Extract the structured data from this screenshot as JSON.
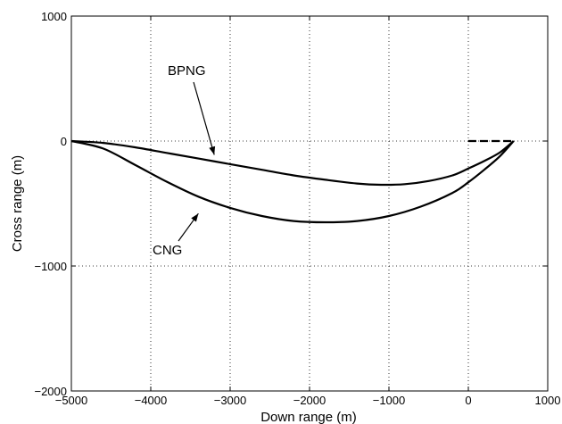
{
  "chart_data": {
    "type": "line",
    "title": "",
    "xlabel": "Down range (m)",
    "ylabel": "Cross range (m)",
    "xlim": [
      -5000,
      1000
    ],
    "ylim": [
      -2000,
      1000
    ],
    "xticks": [
      -5000,
      -4000,
      -3000,
      -2000,
      -1000,
      0,
      1000
    ],
    "yticks": [
      1000,
      0,
      -1000,
      -2000
    ],
    "xtick_labels": [
      "−5000",
      "−4000",
      "−3000",
      "−2000",
      "−1000",
      "0",
      "1000"
    ],
    "ytick_labels": [
      "1000",
      "0",
      "−1000",
      "−2000"
    ],
    "grid": true,
    "series": [
      {
        "name": "BPNG",
        "x": [
          -5000,
          -4600,
          -4200,
          -3800,
          -3400,
          -3000,
          -2600,
          -2200,
          -1800,
          -1400,
          -1100,
          -800,
          -500,
          -200,
          0,
          200,
          400,
          570
        ],
        "y": [
          0,
          -15,
          -50,
          -95,
          -140,
          -185,
          -230,
          -275,
          -310,
          -340,
          -350,
          -345,
          -320,
          -275,
          -220,
          -160,
          -90,
          0
        ]
      },
      {
        "name": "CNG",
        "x": [
          -5000,
          -4600,
          -4200,
          -3800,
          -3400,
          -3000,
          -2600,
          -2200,
          -1800,
          -1400,
          -1000,
          -600,
          -200,
          0,
          200,
          400,
          570
        ],
        "y": [
          0,
          -60,
          -190,
          -325,
          -445,
          -535,
          -600,
          -640,
          -650,
          -640,
          -600,
          -525,
          -415,
          -330,
          -230,
          -120,
          0
        ]
      },
      {
        "name": "",
        "style": "dashed",
        "x": [
          0,
          570
        ],
        "y": [
          0,
          0
        ]
      }
    ],
    "annotations": [
      {
        "text": "BPNG",
        "arrow_to": [
          -3200,
          -110
        ]
      },
      {
        "text": "CNG",
        "arrow_to": [
          -3400,
          -580
        ]
      }
    ]
  }
}
